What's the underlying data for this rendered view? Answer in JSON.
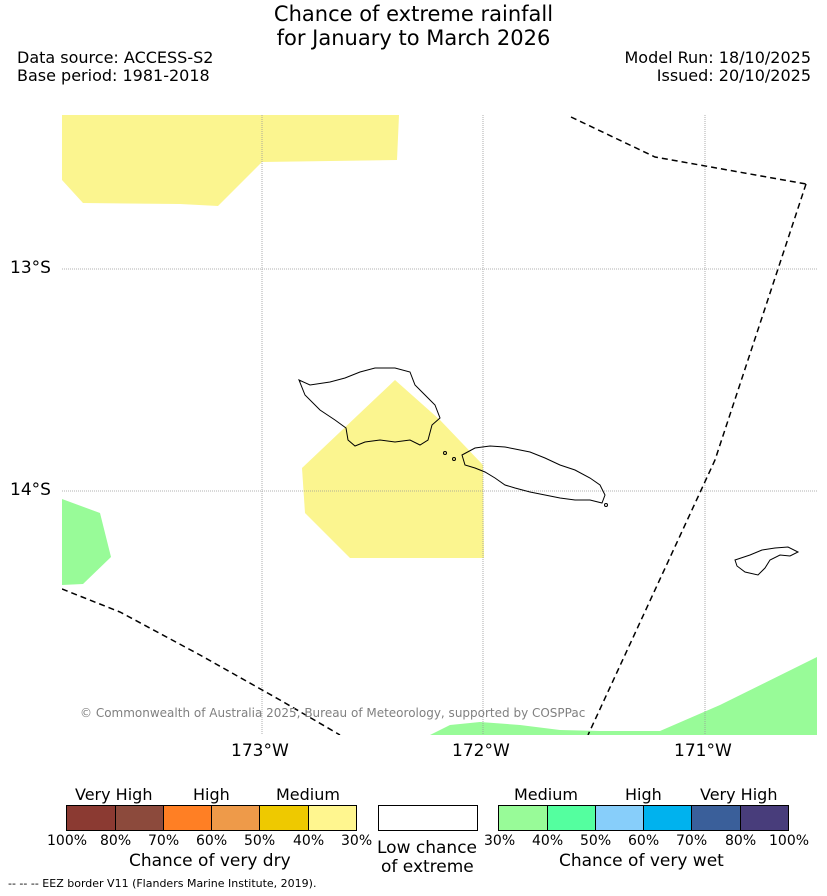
{
  "title_line1": "Chance of extreme rainfall",
  "title_line2": "for January to March 2026",
  "data_source": "Data source: ACCESS-S2",
  "base_period": "Base period: 1981-2018",
  "model_run": "Model Run: 18/10/2025",
  "issued": "Issued: 20/10/2025",
  "lat_labels": [
    "13°S",
    "14°S"
  ],
  "lon_labels": [
    "173°W",
    "172°W",
    "171°W"
  ],
  "copyright": "© Commonwealth of Australia 2025, Bureau of Meteorology, supported by COSPPac",
  "dry_legend": {
    "categories": [
      "Very High",
      "High",
      "Medium"
    ],
    "ticks": [
      "100%",
      "80%",
      "70%",
      "60%",
      "50%",
      "40%",
      "30%"
    ],
    "colors": [
      "#8b3a32",
      "#8c4a3c",
      "#ff7f24",
      "#ee9a49",
      "#eec900",
      "#fff68f"
    ],
    "title": "Chance of very dry"
  },
  "low_chance": {
    "line1": "Low chance",
    "line2": "of extreme",
    "color": "#ffffff"
  },
  "wet_legend": {
    "categories": [
      "Medium",
      "High",
      "Very High"
    ],
    "ticks": [
      "30%",
      "40%",
      "50%",
      "60%",
      "70%",
      "80%",
      "100%"
    ],
    "colors": [
      "#98fb98",
      "#54ff9f",
      "#87cefa",
      "#00b2ee",
      "#3a5f9a",
      "#483d7b"
    ],
    "title": "Chance of very wet"
  },
  "eez_footnote": "--  --  -- EEZ border V11 (Flanders Marine Institute, 2019).",
  "colors": {
    "dry_medium": "#fbf58f",
    "wet_medium": "#98fb98",
    "grid": "#999999"
  }
}
